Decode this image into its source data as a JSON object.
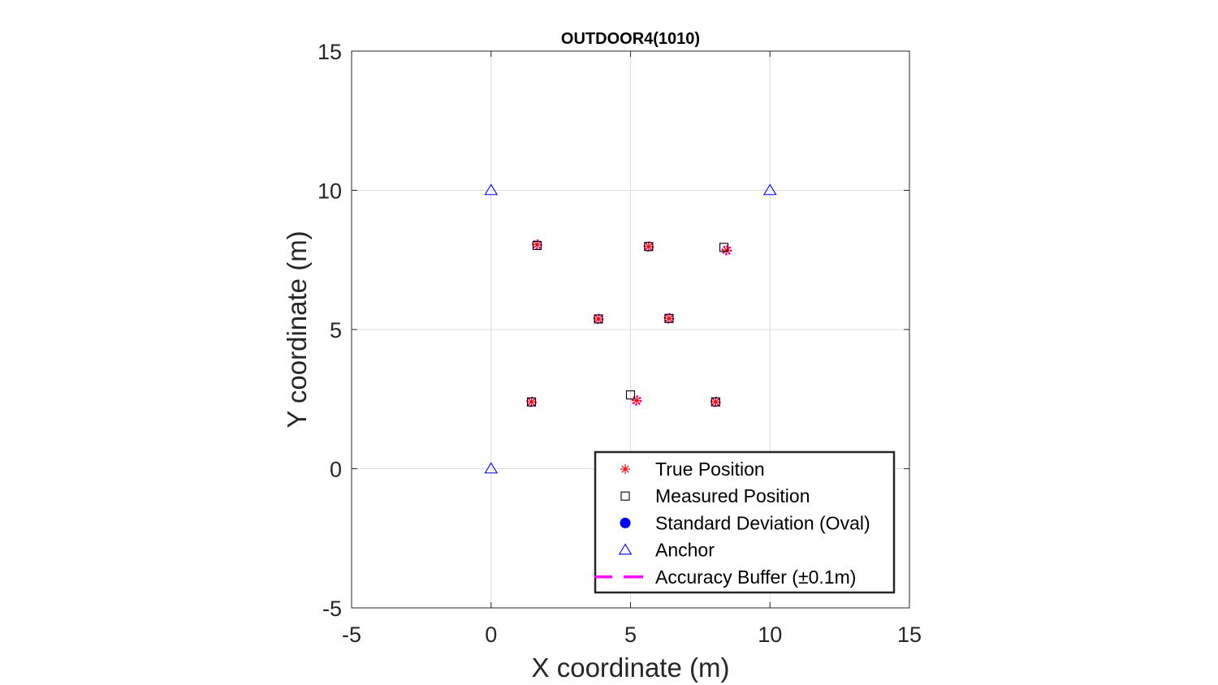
{
  "chart_data": {
    "type": "scatter",
    "title": "OUTDOOR4(1010)",
    "xlabel": "X coordinate (m)",
    "ylabel": "Y coordinate (m)",
    "xlim": [
      -5,
      15
    ],
    "ylim": [
      -5,
      15
    ],
    "xticks": [
      -5,
      0,
      5,
      10,
      15
    ],
    "yticks": [
      -5,
      0,
      5,
      10,
      15
    ],
    "xtick_labels": [
      "-5",
      "0",
      "5",
      "10",
      "15"
    ],
    "ytick_labels": [
      "-5",
      "0",
      "5",
      "10",
      "15"
    ],
    "grid": true,
    "legend_position": "bottom-right",
    "series": [
      {
        "name": "True Position",
        "marker": "asterisk",
        "color": "#ff0000",
        "points": [
          [
            1.65,
            8.05
          ],
          [
            5.65,
            7.98
          ],
          [
            8.45,
            7.85
          ],
          [
            3.85,
            5.38
          ],
          [
            6.38,
            5.4
          ],
          [
            1.45,
            2.4
          ],
          [
            5.22,
            2.45
          ],
          [
            8.05,
            2.4
          ]
        ]
      },
      {
        "name": "Measured Position",
        "marker": "square",
        "color": "#000000",
        "points": [
          [
            1.65,
            8.02
          ],
          [
            5.65,
            7.98
          ],
          [
            8.35,
            7.95
          ],
          [
            3.85,
            5.38
          ],
          [
            6.38,
            5.4
          ],
          [
            1.45,
            2.4
          ],
          [
            5.0,
            2.65
          ],
          [
            8.05,
            2.4
          ]
        ]
      },
      {
        "name": "Standard Deviation (Oval)",
        "marker": "filled-circle",
        "color": "#0000ff",
        "points": []
      },
      {
        "name": "Anchor",
        "marker": "triangle",
        "color": "#0000ff",
        "points": [
          [
            0,
            10
          ],
          [
            10,
            10
          ],
          [
            0,
            0
          ]
        ]
      },
      {
        "name": "Accuracy Buffer (±0.1m)",
        "marker": "dashed-line",
        "color": "#ff00ff",
        "points": [
          [
            1.65,
            8.05
          ],
          [
            5.65,
            7.98
          ],
          [
            8.45,
            7.85
          ],
          [
            3.85,
            5.38
          ],
          [
            6.38,
            5.4
          ],
          [
            1.45,
            2.4
          ],
          [
            5.22,
            2.45
          ],
          [
            8.05,
            2.4
          ]
        ]
      }
    ]
  }
}
